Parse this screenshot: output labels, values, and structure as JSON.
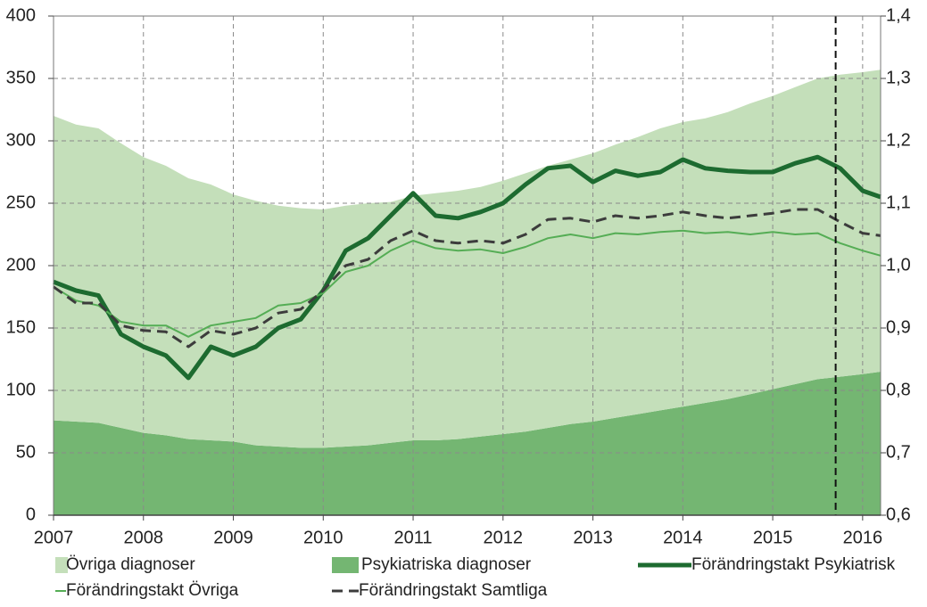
{
  "chart_data": {
    "type": "combo",
    "x": [
      2007,
      2007.25,
      2007.5,
      2007.75,
      2008,
      2008.25,
      2008.5,
      2008.75,
      2009,
      2009.25,
      2009.5,
      2009.75,
      2010,
      2010.25,
      2010.5,
      2010.75,
      2011,
      2011.25,
      2011.5,
      2011.75,
      2012,
      2012.25,
      2012.5,
      2012.75,
      2013,
      2013.25,
      2013.5,
      2013.75,
      2014,
      2014.25,
      2014.5,
      2014.75,
      2015,
      2015.25,
      2015.5,
      2015.75,
      2016,
      2016.2
    ],
    "xlim": [
      2007,
      2016.2
    ],
    "xticks": [
      2007,
      2008,
      2009,
      2010,
      2011,
      2012,
      2013,
      2014,
      2015,
      2016
    ],
    "ylim": [
      0,
      400
    ],
    "yticks": [
      0,
      50,
      100,
      150,
      200,
      250,
      300,
      350,
      400
    ],
    "y2lim": [
      0.6,
      1.4
    ],
    "y2ticks": [
      {
        "value": 0.6,
        "label": "0,6"
      },
      {
        "value": 0.7,
        "label": "0,7"
      },
      {
        "value": 0.8,
        "label": "0,8"
      },
      {
        "value": 0.9,
        "label": "0,9"
      },
      {
        "value": 1.0,
        "label": "1,0"
      },
      {
        "value": 1.1,
        "label": "1,1"
      },
      {
        "value": 1.2,
        "label": "1,2"
      },
      {
        "value": 1.3,
        "label": "1,3"
      },
      {
        "value": 1.4,
        "label": "1,4"
      }
    ],
    "grid": true,
    "stacked": true,
    "vline": 2015.7,
    "series": [
      {
        "name": "Övriga diagnoser",
        "type": "area",
        "color": "#c4dfba",
        "values": [
          244,
          238,
          236,
          228,
          221,
          216,
          209,
          205,
          198,
          196,
          193,
          192,
          191,
          193,
          194,
          193,
          196,
          198,
          199,
          200,
          203,
          207,
          210,
          212,
          215,
          219,
          222,
          226,
          228,
          228,
          230,
          233,
          235,
          238,
          241,
          242,
          242,
          242
        ]
      },
      {
        "name": "Psykiatriska diagnoser",
        "type": "area",
        "color": "#74b672",
        "values": [
          76,
          75,
          74,
          70,
          66,
          64,
          61,
          60,
          59,
          56,
          55,
          54,
          54,
          55,
          56,
          58,
          60,
          60,
          61,
          63,
          65,
          67,
          70,
          73,
          75,
          78,
          81,
          84,
          87,
          90,
          93,
          97,
          101,
          105,
          109,
          111,
          113,
          115
        ]
      },
      {
        "name": "Förändringstakt Psykiatrisk",
        "type": "line",
        "axis": "y2",
        "color": "#1d6b30",
        "width": 5,
        "values": [
          0.974,
          0.96,
          0.952,
          0.89,
          0.87,
          0.856,
          0.82,
          0.87,
          0.856,
          0.87,
          0.9,
          0.914,
          0.96,
          1.024,
          1.044,
          1.08,
          1.116,
          1.08,
          1.076,
          1.086,
          1.1,
          1.13,
          1.156,
          1.16,
          1.134,
          1.152,
          1.144,
          1.15,
          1.17,
          1.156,
          1.152,
          1.15,
          1.15,
          1.164,
          1.174,
          1.156,
          1.12,
          1.11
        ]
      },
      {
        "name": "Förändringstakt Övriga",
        "type": "line",
        "axis": "y2",
        "color": "#55ad55",
        "width": 2,
        "values": [
          0.966,
          0.944,
          0.936,
          0.91,
          0.904,
          0.904,
          0.886,
          0.904,
          0.91,
          0.916,
          0.936,
          0.94,
          0.956,
          0.99,
          1.0,
          1.024,
          1.04,
          1.028,
          1.024,
          1.026,
          1.02,
          1.03,
          1.044,
          1.05,
          1.044,
          1.052,
          1.05,
          1.054,
          1.056,
          1.052,
          1.054,
          1.05,
          1.054,
          1.05,
          1.052,
          1.036,
          1.024,
          1.016
        ]
      },
      {
        "name": "Förändringstakt Samtliga",
        "type": "line",
        "axis": "y2",
        "color": "#3c3c3c",
        "width": 3,
        "dashed": true,
        "values": [
          0.966,
          0.94,
          0.94,
          0.904,
          0.896,
          0.894,
          0.87,
          0.896,
          0.89,
          0.9,
          0.924,
          0.93,
          0.96,
          1.0,
          1.01,
          1.04,
          1.056,
          1.04,
          1.036,
          1.04,
          1.036,
          1.05,
          1.074,
          1.076,
          1.07,
          1.08,
          1.076,
          1.08,
          1.086,
          1.08,
          1.076,
          1.08,
          1.084,
          1.09,
          1.09,
          1.07,
          1.052,
          1.048
        ]
      }
    ]
  }
}
